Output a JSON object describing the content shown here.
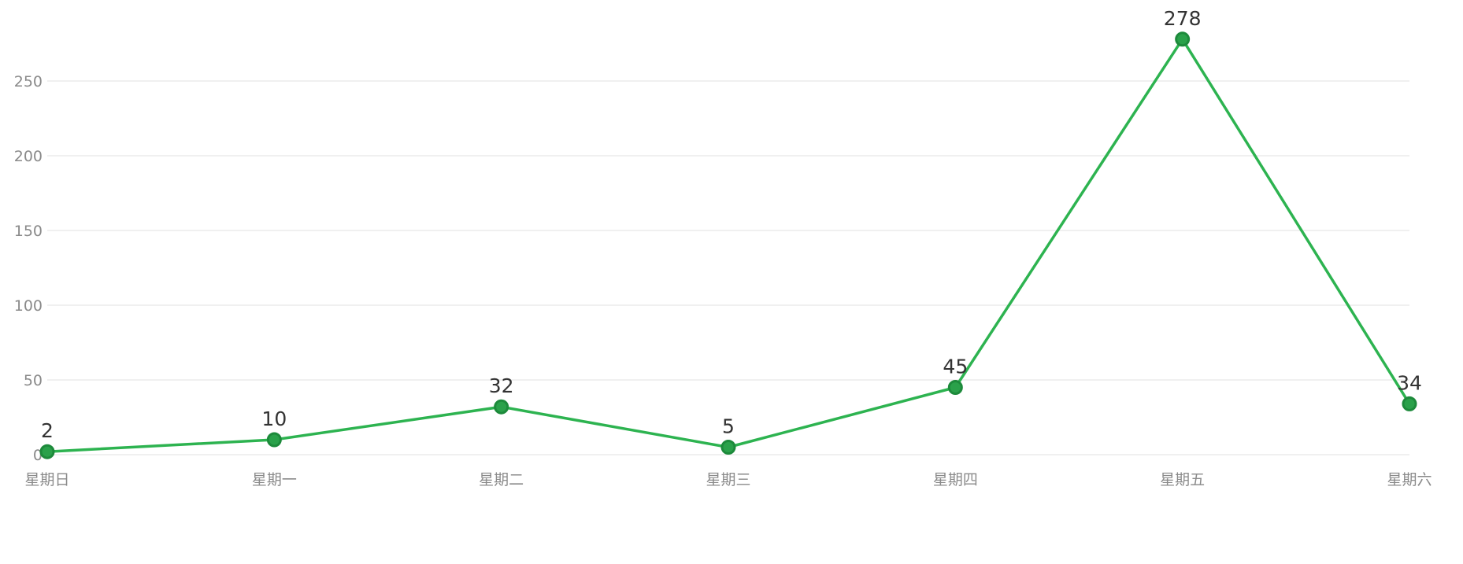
{
  "chart_data": {
    "type": "line",
    "categories": [
      "星期日",
      "星期一",
      "星期二",
      "星期三",
      "星期四",
      "星期五",
      "星期六"
    ],
    "series": [
      {
        "values": [
          2,
          10,
          32,
          5,
          45,
          278,
          34
        ]
      }
    ],
    "y_ticks": [
      0,
      50,
      100,
      150,
      200,
      250
    ],
    "ylim": [
      0,
      300
    ],
    "grid": true,
    "data_labels": true,
    "colors": {
      "line": "#2db350",
      "marker_fill": "#2aa14a",
      "marker_stroke": "#1d8a3b",
      "grid": "#e6e6e6",
      "tick_text": "#8a8a8a",
      "label_text": "#333333"
    }
  }
}
